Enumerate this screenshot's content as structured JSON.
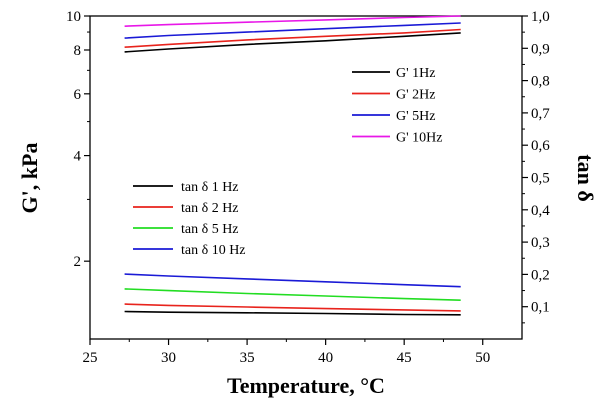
{
  "chart_data": {
    "type": "line",
    "xlabel": "Temperature, °C",
    "ylabel_left": "G', kPa",
    "ylabel_right": "tan δ",
    "xlim": [
      25,
      52.5
    ],
    "xticks": [
      "25",
      "30",
      "35",
      "40",
      "45",
      "50"
    ],
    "y_left": {
      "scale": "log",
      "lim": [
        1.2,
        10
      ],
      "ticks": [
        {
          "value": 2,
          "label": "2"
        },
        {
          "value": 4,
          "label": "4"
        },
        {
          "value": 6,
          "label": "6"
        },
        {
          "value": 8,
          "label": "8"
        },
        {
          "value": 10,
          "label": "10"
        }
      ]
    },
    "y_right": {
      "scale": "linear",
      "lim": [
        0,
        1.0
      ],
      "ticks": [
        {
          "value": 0.1,
          "label": "0,1"
        },
        {
          "value": 0.2,
          "label": "0,2"
        },
        {
          "value": 0.3,
          "label": "0,3"
        },
        {
          "value": 0.4,
          "label": "0,4"
        },
        {
          "value": 0.5,
          "label": "0,5"
        },
        {
          "value": 0.6,
          "label": "0,6"
        },
        {
          "value": 0.7,
          "label": "0,7"
        },
        {
          "value": 0.8,
          "label": "0,8"
        },
        {
          "value": 0.9,
          "label": "0,9"
        },
        {
          "value": 1.0,
          "label": "1,0"
        }
      ]
    },
    "grid": false,
    "series": [
      {
        "name": "G' 1Hz",
        "axis": "left",
        "color": "#000000",
        "x": [
          27.2,
          30,
          35,
          40,
          45,
          48.6
        ],
        "values": [
          7.9,
          8.05,
          8.3,
          8.5,
          8.75,
          8.95
        ]
      },
      {
        "name": "G' 2Hz",
        "axis": "left",
        "color": "#e8231c",
        "x": [
          27.2,
          30,
          35,
          40,
          45,
          48.6
        ],
        "values": [
          8.15,
          8.3,
          8.55,
          8.75,
          8.95,
          9.15
        ]
      },
      {
        "name": "G' 5Hz",
        "axis": "left",
        "color": "#1a1ad6",
        "x": [
          27.2,
          30,
          35,
          40,
          45,
          48.6
        ],
        "values": [
          8.65,
          8.8,
          9.0,
          9.2,
          9.4,
          9.55
        ]
      },
      {
        "name": "G' 10Hz",
        "axis": "left",
        "color": "#e817e8",
        "x": [
          27.2,
          30,
          35,
          40,
          45,
          48.6
        ],
        "values": [
          9.35,
          9.45,
          9.6,
          9.75,
          9.9,
          10.0
        ]
      },
      {
        "name": "tan δ 1 Hz",
        "axis": "right",
        "color": "#000000",
        "x": [
          27.2,
          30,
          35,
          40,
          45,
          48.6
        ],
        "values": [
          0.085,
          0.083,
          0.081,
          0.079,
          0.076,
          0.075
        ]
      },
      {
        "name": "tan δ 2 Hz",
        "axis": "right",
        "color": "#e8231c",
        "x": [
          27.2,
          30,
          35,
          40,
          45,
          48.6
        ],
        "values": [
          0.108,
          0.104,
          0.099,
          0.094,
          0.09,
          0.087
        ]
      },
      {
        "name": "tan δ 5 Hz",
        "axis": "right",
        "color": "#22dd22",
        "x": [
          27.2,
          30,
          35,
          40,
          45,
          48.6
        ],
        "values": [
          0.155,
          0.15,
          0.141,
          0.133,
          0.125,
          0.12
        ]
      },
      {
        "name": "tan δ 10 Hz",
        "axis": "right",
        "color": "#1a1ad6",
        "x": [
          27.2,
          30,
          35,
          40,
          45,
          48.6
        ],
        "values": [
          0.201,
          0.195,
          0.186,
          0.177,
          0.168,
          0.162
        ]
      }
    ],
    "legends": [
      {
        "position": "upper-right",
        "entries": [
          "G' 1Hz",
          "G' 2Hz",
          "G' 5Hz",
          "G' 10Hz"
        ]
      },
      {
        "position": "middle-left",
        "entries": [
          "tan δ 1 Hz",
          "tan δ 2 Hz",
          "tan δ 5 Hz",
          "tan δ 10 Hz"
        ]
      }
    ]
  }
}
